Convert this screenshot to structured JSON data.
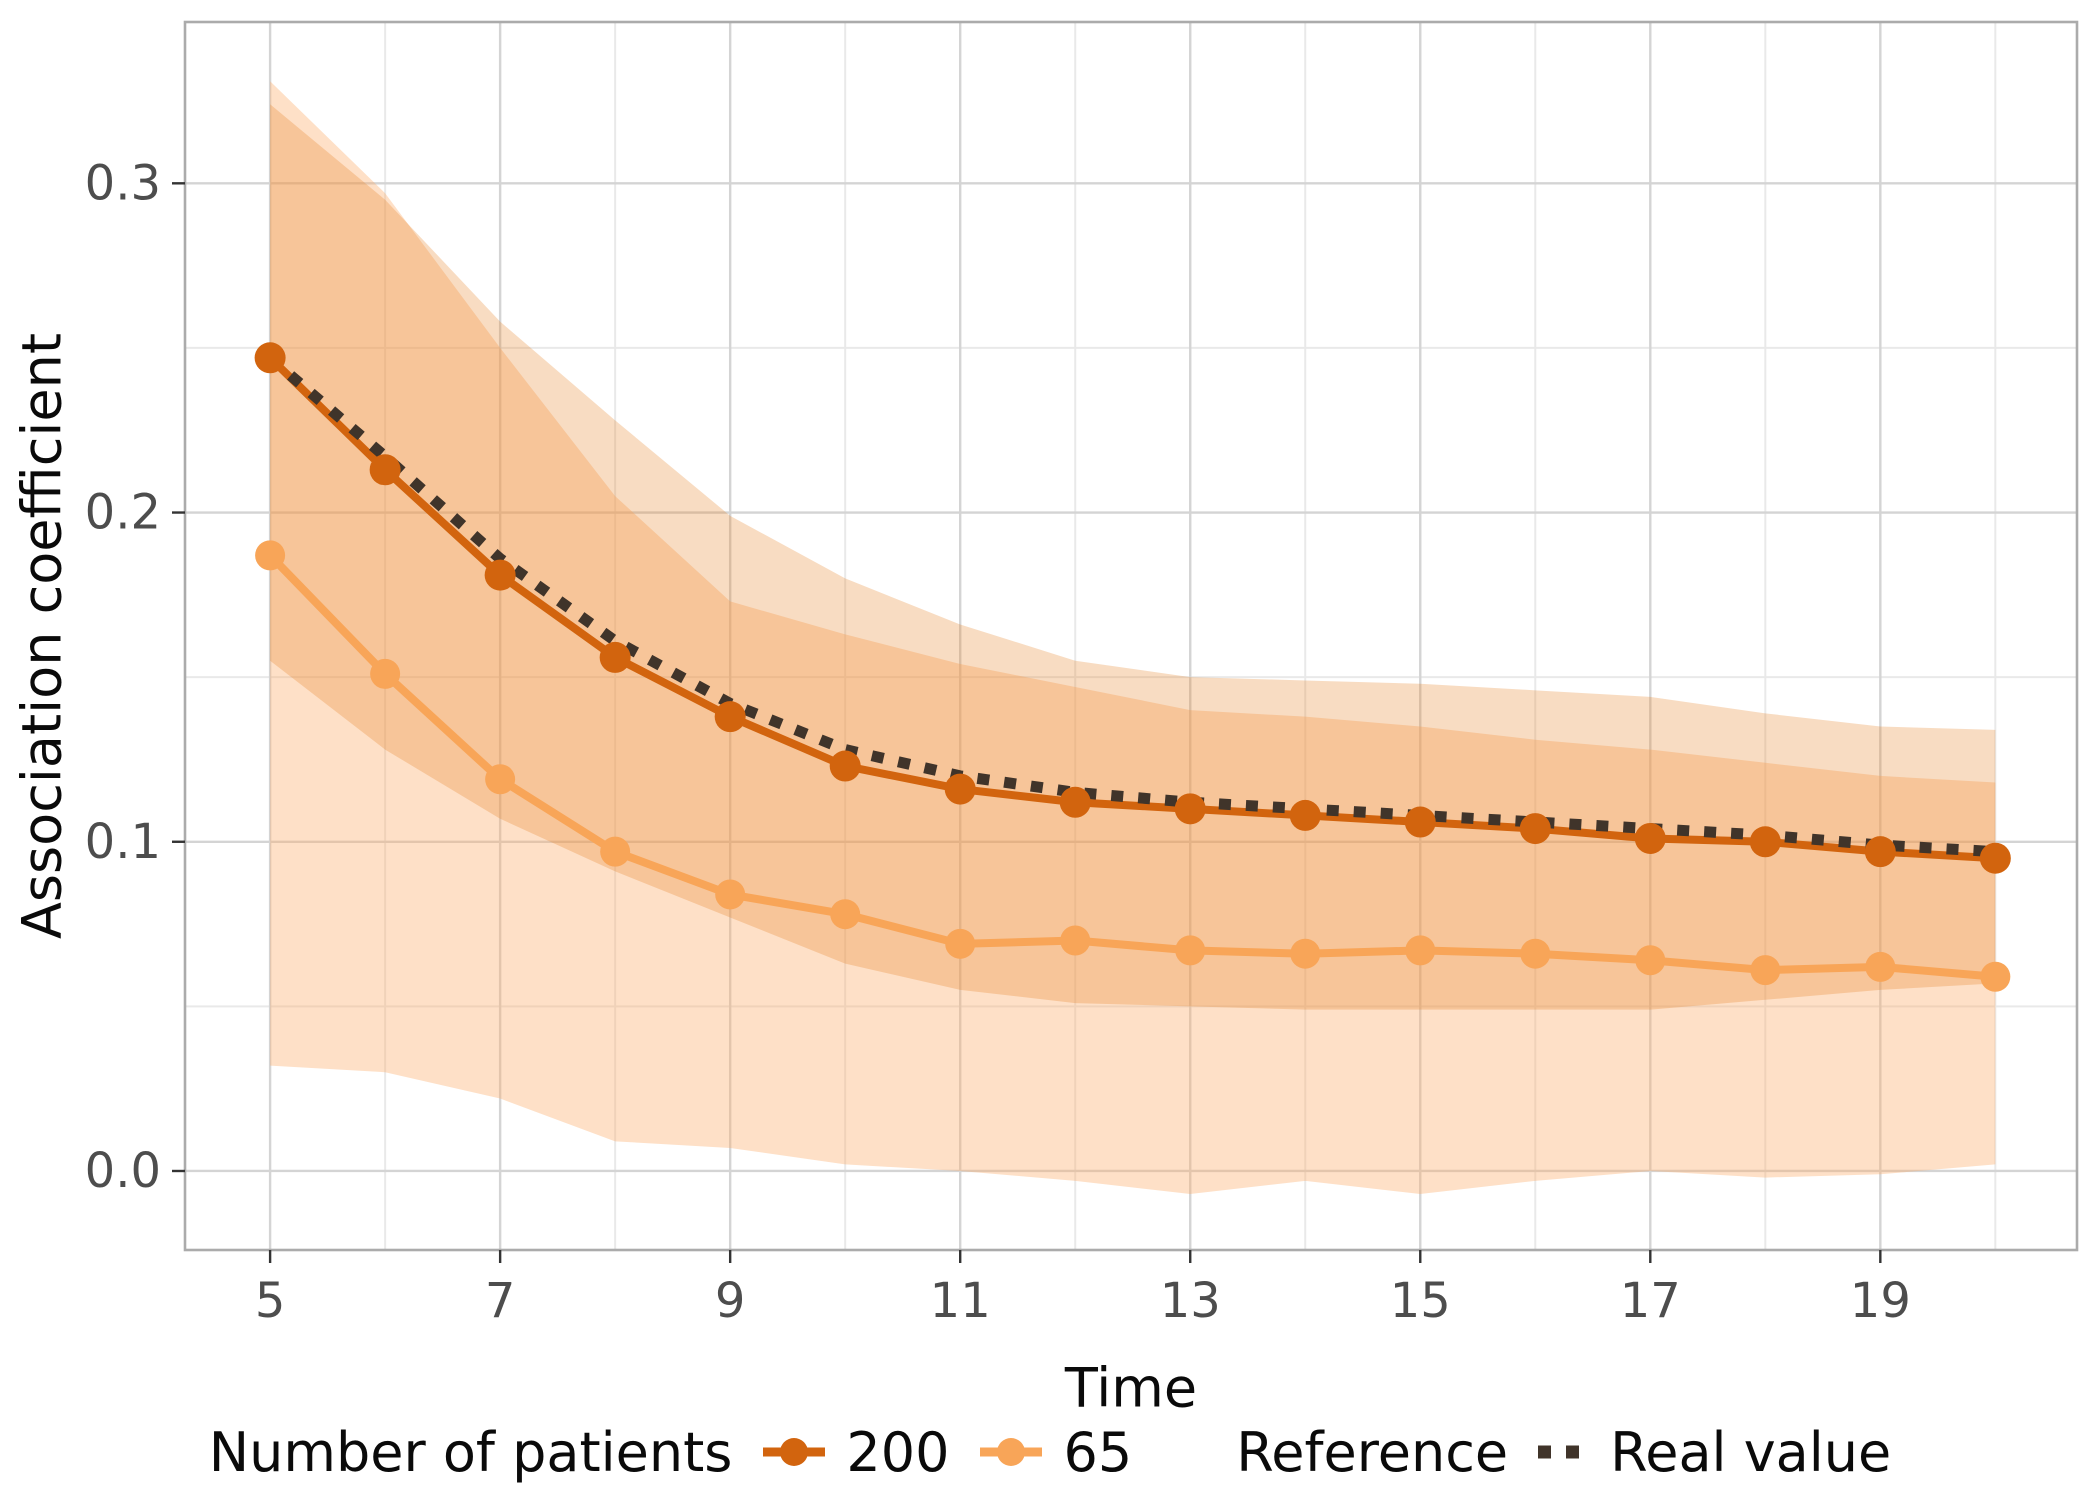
{
  "chart_data": {
    "type": "line",
    "xlabel": "Time",
    "ylabel": "Association coefficient",
    "x": [
      5,
      6,
      7,
      8,
      9,
      10,
      11,
      12,
      13,
      14,
      15,
      16,
      17,
      18,
      19,
      20
    ],
    "series": [
      {
        "name": "200",
        "color": "#D2640E",
        "band_fill": "#E78124",
        "band_opacity": 0.28,
        "values": [
          0.247,
          0.213,
          0.181,
          0.156,
          0.138,
          0.123,
          0.116,
          0.112,
          0.11,
          0.108,
          0.106,
          0.104,
          0.101,
          0.1,
          0.097,
          0.095
        ],
        "band_upper": [
          0.324,
          0.295,
          0.258,
          0.228,
          0.199,
          0.18,
          0.166,
          0.155,
          0.15,
          0.149,
          0.148,
          0.146,
          0.144,
          0.139,
          0.135,
          0.134
        ],
        "band_lower": [
          0.155,
          0.128,
          0.107,
          0.091,
          0.077,
          0.063,
          0.055,
          0.051,
          0.05,
          0.049,
          0.049,
          0.049,
          0.049,
          0.052,
          0.055,
          0.057
        ]
      },
      {
        "name": "65",
        "color": "#F8A558",
        "band_fill": "#FDAE6B",
        "band_opacity": 0.38,
        "values": [
          0.187,
          0.151,
          0.119,
          0.097,
          0.084,
          0.078,
          0.069,
          0.07,
          0.067,
          0.066,
          0.067,
          0.066,
          0.064,
          0.061,
          0.062,
          0.059
        ],
        "band_upper": [
          0.331,
          0.297,
          0.25,
          0.205,
          0.173,
          0.163,
          0.154,
          0.147,
          0.14,
          0.138,
          0.135,
          0.131,
          0.128,
          0.124,
          0.12,
          0.118
        ],
        "band_lower": [
          0.032,
          0.03,
          0.022,
          0.009,
          0.007,
          0.002,
          0.0,
          -0.003,
          -0.007,
          -0.003,
          -0.007,
          -0.003,
          0.0,
          -0.002,
          -0.001,
          0.002
        ]
      }
    ],
    "reference": {
      "name": "Real value",
      "color": "#40342A",
      "values": [
        0.247,
        0.217,
        0.186,
        0.161,
        0.142,
        0.128,
        0.12,
        0.115,
        0.112,
        0.11,
        0.108,
        0.106,
        0.104,
        0.102,
        0.099,
        0.097
      ]
    },
    "axes": {
      "xlim": [
        4.26,
        20.71
      ],
      "ylim": [
        -0.024,
        0.349
      ],
      "x_major_ticks": [
        5,
        7,
        9,
        11,
        13,
        15,
        17,
        19
      ],
      "x_minor_ticks": [
        6,
        8,
        10,
        12,
        14,
        16,
        18,
        20
      ],
      "y_major_ticks": [
        0.0,
        0.1,
        0.2,
        0.3
      ],
      "y_minor_ticks": [
        0.05,
        0.15,
        0.25
      ],
      "x_tick_labels": [
        "5",
        "7",
        "9",
        "11",
        "13",
        "15",
        "17",
        "19"
      ],
      "y_tick_labels": [
        "0.0",
        "0.1",
        "0.2",
        "0.3"
      ],
      "grid": true,
      "grid_major_color": "#D4D4D4",
      "grid_minor_color": "#E9E9E9",
      "panel_border_color": "#ABABAB",
      "tick_mark_color": "#333333",
      "tick_label_color": "#4D4D4D"
    },
    "legend": {
      "position": "bottom",
      "patients_title": "Number of patients",
      "reference_title": "Reference",
      "reference_key_label": "Real value"
    }
  }
}
